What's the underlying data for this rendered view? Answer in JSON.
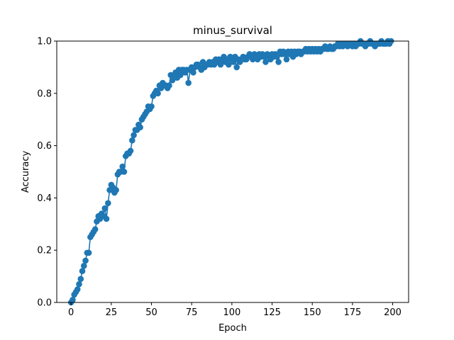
{
  "chart_data": {
    "type": "line",
    "title": "minus_survival",
    "xlabel": "Epoch",
    "ylabel": "Accuracy",
    "xlim": [
      -8.9,
      209.9
    ],
    "ylim": [
      0,
      1.0
    ],
    "xticks": [
      0,
      25,
      50,
      75,
      100,
      125,
      150,
      175,
      200
    ],
    "xtick_labels": [
      "0",
      "25",
      "50",
      "75",
      "100",
      "125",
      "150",
      "175",
      "200"
    ],
    "yticks": [
      0,
      0.2,
      0.4,
      0.6,
      0.8,
      1.0
    ],
    "ytick_labels": [
      "0.0",
      "0.2",
      "0.4",
      "0.6",
      "0.8",
      "1.0"
    ],
    "grid": false,
    "markers": true,
    "color": "#1f77b4",
    "series": [
      {
        "x": [
          0,
          1,
          2,
          3,
          4,
          5,
          6,
          7,
          8,
          9,
          10,
          11,
          12,
          13,
          14,
          15,
          16,
          17,
          18,
          19,
          20,
          21,
          22,
          23,
          24,
          25,
          26,
          27,
          28,
          29,
          30,
          31,
          32,
          33,
          34,
          35,
          36,
          37,
          38,
          39,
          40,
          41,
          42,
          43,
          44,
          45,
          46,
          47,
          48,
          49,
          50,
          51,
          52,
          53,
          54,
          55,
          56,
          57,
          58,
          59,
          60,
          61,
          62,
          63,
          64,
          65,
          66,
          67,
          68,
          69,
          70,
          71,
          72,
          73,
          74,
          75,
          76,
          77,
          78,
          79,
          80,
          81,
          82,
          83,
          84,
          85,
          86,
          87,
          88,
          89,
          90,
          91,
          92,
          93,
          94,
          95,
          96,
          97,
          98,
          99,
          100,
          101,
          102,
          103,
          104,
          105,
          106,
          107,
          108,
          109,
          110,
          111,
          112,
          113,
          114,
          115,
          116,
          117,
          118,
          119,
          120,
          121,
          122,
          123,
          124,
          125,
          126,
          127,
          128,
          129,
          130,
          131,
          132,
          133,
          134,
          135,
          136,
          137,
          138,
          139,
          140,
          141,
          142,
          143,
          144,
          145,
          146,
          147,
          148,
          149,
          150,
          151,
          152,
          153,
          154,
          155,
          156,
          157,
          158,
          159,
          160,
          161,
          162,
          163,
          164,
          165,
          166,
          167,
          168,
          169,
          170,
          171,
          172,
          173,
          174,
          175,
          176,
          177,
          178,
          179,
          180,
          181,
          182,
          183,
          184,
          185,
          186,
          187,
          188,
          189,
          190,
          191,
          192,
          193,
          194,
          195,
          196,
          197,
          198,
          199
        ],
        "values": [
          0.0,
          0.01,
          0.03,
          0.04,
          0.05,
          0.07,
          0.09,
          0.12,
          0.14,
          0.16,
          0.19,
          0.19,
          0.25,
          0.26,
          0.27,
          0.28,
          0.31,
          0.33,
          0.32,
          0.34,
          0.33,
          0.36,
          0.32,
          0.38,
          0.43,
          0.45,
          0.44,
          0.42,
          0.43,
          0.49,
          0.5,
          0.5,
          0.52,
          0.5,
          0.56,
          0.57,
          0.57,
          0.58,
          0.62,
          0.64,
          0.66,
          0.66,
          0.68,
          0.67,
          0.7,
          0.71,
          0.72,
          0.73,
          0.75,
          0.74,
          0.75,
          0.79,
          0.8,
          0.81,
          0.8,
          0.83,
          0.82,
          0.84,
          0.83,
          0.83,
          0.82,
          0.83,
          0.87,
          0.85,
          0.86,
          0.88,
          0.86,
          0.89,
          0.87,
          0.89,
          0.89,
          0.88,
          0.89,
          0.84,
          0.89,
          0.9,
          0.88,
          0.9,
          0.91,
          0.91,
          0.9,
          0.89,
          0.92,
          0.9,
          0.91,
          0.91,
          0.92,
          0.91,
          0.92,
          0.91,
          0.93,
          0.92,
          0.93,
          0.91,
          0.93,
          0.94,
          0.92,
          0.93,
          0.91,
          0.94,
          0.93,
          0.92,
          0.94,
          0.9,
          0.93,
          0.92,
          0.93,
          0.94,
          0.93,
          0.93,
          0.94,
          0.95,
          0.94,
          0.93,
          0.95,
          0.94,
          0.93,
          0.95,
          0.94,
          0.95,
          0.94,
          0.92,
          0.95,
          0.94,
          0.93,
          0.95,
          0.94,
          0.95,
          0.94,
          0.92,
          0.96,
          0.95,
          0.96,
          0.95,
          0.93,
          0.96,
          0.95,
          0.96,
          0.94,
          0.96,
          0.95,
          0.96,
          0.96,
          0.95,
          0.96,
          0.96,
          0.97,
          0.96,
          0.97,
          0.96,
          0.97,
          0.96,
          0.97,
          0.96,
          0.97,
          0.96,
          0.97,
          0.97,
          0.98,
          0.97,
          0.97,
          0.98,
          0.97,
          0.97,
          0.98,
          0.98,
          0.99,
          0.98,
          0.99,
          0.98,
          0.99,
          0.99,
          0.98,
          0.99,
          0.99,
          0.98,
          0.99,
          0.98,
          0.99,
          0.99,
          1.0,
          0.99,
          0.99,
          0.98,
          0.99,
          0.99,
          1.0,
          0.99,
          0.99,
          0.98,
          0.99,
          0.99,
          0.99,
          1.0,
          0.99,
          0.99,
          0.99,
          1.0,
          0.99,
          1.0
        ]
      }
    ]
  }
}
